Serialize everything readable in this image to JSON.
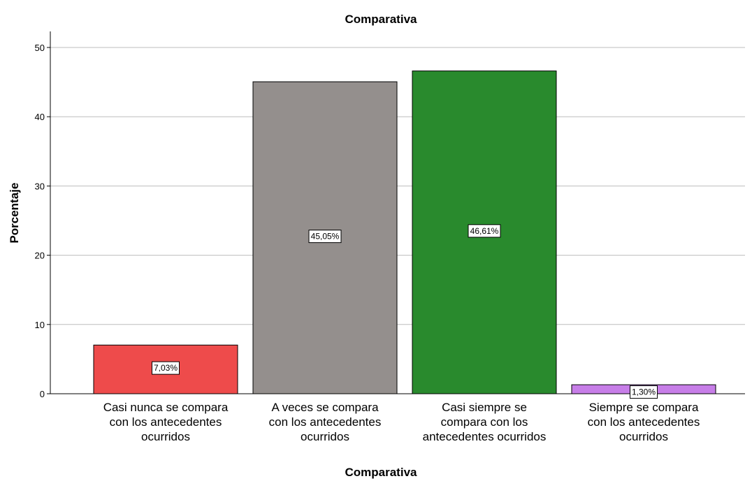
{
  "chart_data": {
    "type": "bar",
    "title": "Comparativa",
    "xlabel": "Comparativa",
    "ylabel": "Porcentaje",
    "ylim": [
      0,
      52
    ],
    "yticks": [
      0,
      10,
      20,
      30,
      40,
      50
    ],
    "grid": true,
    "categories": [
      [
        "Casi nunca se compara",
        "con los antecedentes",
        "ocurridos"
      ],
      [
        "A veces se compara",
        "con los antecedentes",
        "ocurridos"
      ],
      [
        "Casi siempre se",
        "compara con los",
        "antecedentes ocurridos"
      ],
      [
        "Siempre se compara",
        "con los antecedentes",
        "ocurridos"
      ]
    ],
    "values": [
      7.03,
      45.05,
      46.61,
      1.3
    ],
    "data_labels": [
      "7,03%",
      "45,05%",
      "46,61%",
      "1,30%"
    ],
    "colors": [
      "#ee4b4b",
      "#948f8d",
      "#298a2d",
      "#c77ee8"
    ]
  }
}
